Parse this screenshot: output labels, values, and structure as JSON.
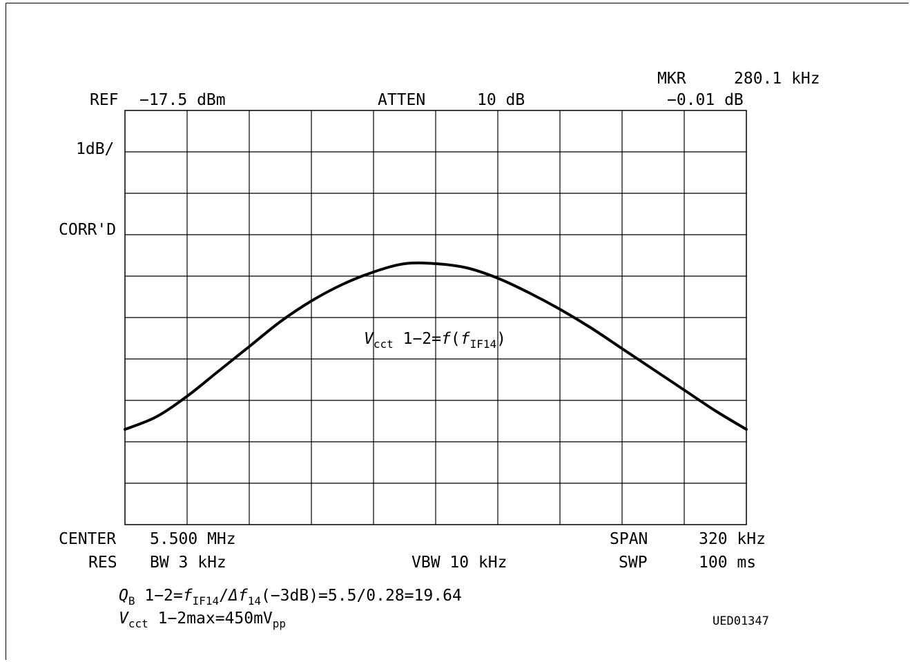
{
  "header": {
    "ref_label": "REF",
    "ref_value": "−17.5 dBm",
    "atten_label": "ATTEN",
    "atten_value": "10 dB",
    "mkr_label": "MKR",
    "mkr_freq": "280.1 kHz",
    "mkr_level": "−0.01 dB"
  },
  "left_labels": {
    "scale": "1dB/",
    "corr": "CORR'D"
  },
  "footer": {
    "center_label": "CENTER",
    "center_value": "5.500 MHz",
    "span_label": "SPAN",
    "span_value": "320 kHz",
    "res_label": "RES",
    "res_value": "BW 3 kHz",
    "vbw": "VBW 10 kHz",
    "swp_label": "SWP",
    "swp_value": "100 ms"
  },
  "formulas": {
    "q_symbol": "Q",
    "q_sub": "B",
    "q_text": " 1−2=",
    "q_f": "f",
    "q_f_sub": "IF14",
    "q_slash": "/",
    "q_delta": "Δf",
    "q_delta_sub": "14",
    "q_rest": "(−3dB)=5.5/0.28=19.64",
    "v_symbol": "V",
    "v_sub": "cct",
    "v_text": " 1−2max=450mV",
    "v_pp": "pp"
  },
  "curve_label": {
    "v": "V",
    "v_sub": "cct",
    "mid": " 1−2=",
    "f": "f",
    "paren_open": "(",
    "f2": "f",
    "f2_sub": "IF14",
    "paren_close": ")"
  },
  "figure_code": "UED01347",
  "chart_data": {
    "type": "line",
    "x_unit": "kHz offset from center",
    "x_range": [
      -160,
      160
    ],
    "y_unit": "dB relative to reference",
    "y_range": [
      -10,
      0
    ],
    "grid": true,
    "grid_divisions": {
      "x": 10,
      "y": 10
    },
    "series": [
      {
        "x": [
          -160,
          -144,
          -128,
          -112,
          -96,
          -80,
          -64,
          -48,
          -32,
          -16,
          0,
          16,
          32,
          48,
          64,
          80,
          96,
          112,
          128,
          144,
          160
        ],
        "y": [
          -7.7,
          -7.4,
          -6.9,
          -6.3,
          -5.7,
          -5.1,
          -4.6,
          -4.2,
          -3.9,
          -3.7,
          -3.7,
          -3.8,
          -4.05,
          -4.4,
          -4.8,
          -5.25,
          -5.75,
          -6.25,
          -6.75,
          -7.25,
          -7.7
        ]
      }
    ]
  }
}
